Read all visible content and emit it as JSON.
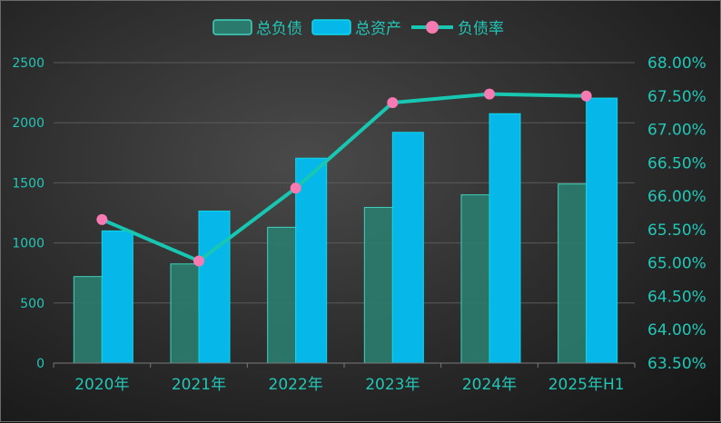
{
  "chart_data": {
    "type": "bar",
    "categories": [
      "2020年",
      "2021年",
      "2022年",
      "2023年",
      "2024年",
      "2025年H1"
    ],
    "series": [
      {
        "name": "总负债",
        "kind": "bar",
        "axis": "left",
        "values": [
          720,
          825,
          1130,
          1295,
          1400,
          1490
        ]
      },
      {
        "name": "总资产",
        "kind": "bar",
        "axis": "left",
        "values": [
          1100,
          1265,
          1705,
          1920,
          2075,
          2205
        ]
      },
      {
        "name": "负债率",
        "kind": "line",
        "axis": "right",
        "values": [
          65.65,
          65.03,
          66.12,
          67.4,
          67.53,
          67.5
        ]
      }
    ],
    "ylim_left": [
      0,
      2500
    ],
    "yticks_left": [
      "0",
      "500",
      "1000",
      "1500",
      "2000",
      "2500"
    ],
    "ylim_right": [
      63.5,
      68.0
    ],
    "yticks_right": [
      "63.50%",
      "64.00%",
      "64.50%",
      "65.00%",
      "65.50%",
      "66.00%",
      "66.50%",
      "67.00%",
      "67.50%",
      "68.00%"
    ],
    "grid": true,
    "legend_position": "top-center",
    "colors": {
      "liability": "#2a7b6e",
      "liability_border": "#3fd3bd",
      "asset": "#06b8ea",
      "asset_border": "#10d7e6",
      "line": "#17c7b2",
      "marker": "#f77ab2",
      "text": "#22c7b7",
      "grid": "#5a5a5a"
    }
  }
}
